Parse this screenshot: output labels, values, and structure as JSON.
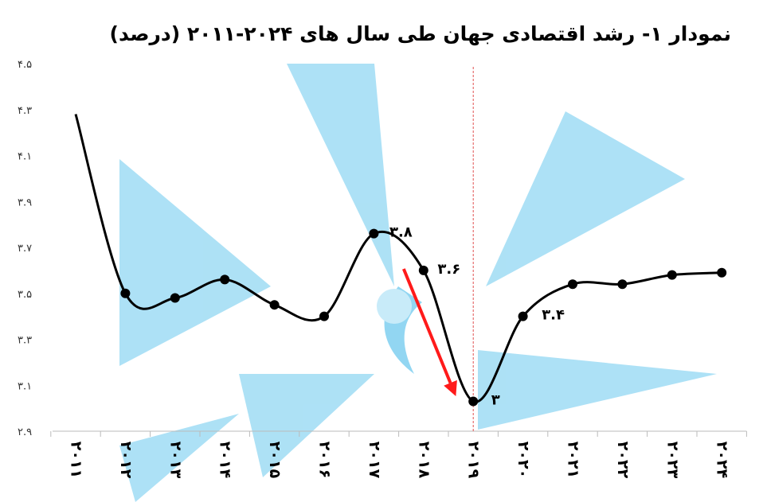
{
  "chart_data": {
    "type": "line",
    "title": "نمودار ۱- رشد اقتصادی جهان طی سال های ۲۰۲۴-۲۰۱۱ (درصد)",
    "categories": [
      "۲۰۱۱",
      "۲۰۱۲",
      "۲۰۱۳",
      "۲۰۱۴",
      "۲۰۱۵",
      "۲۰۱۶",
      "۲۰۱۷",
      "۲۰۱۸",
      "۲۰۱۹",
      "۲۰۲۰",
      "۲۰۲۱",
      "۲۰۲۲",
      "۲۰۲۳",
      "۲۰۲۴"
    ],
    "values": [
      4.28,
      3.5,
      3.48,
      3.56,
      3.45,
      3.4,
      3.76,
      3.6,
      3.03,
      3.4,
      3.54,
      3.54,
      3.58,
      3.59
    ],
    "ylim": [
      2.9,
      4.5
    ],
    "yticks": [
      2.9,
      3.1,
      3.3,
      3.5,
      3.7,
      3.9,
      4.1,
      4.3,
      4.5
    ],
    "ytick_labels": [
      "۲.۹",
      "۳.۱",
      "۳.۳",
      "۳.۵",
      "۳.۷",
      "۳.۹",
      "۴.۱",
      "۴.۳",
      "۴.۵"
    ],
    "data_labels": [
      {
        "index": 6,
        "text": "۳.۸"
      },
      {
        "index": 7,
        "text": "۳.۶"
      },
      {
        "index": 8,
        "text": "۳"
      },
      {
        "index": 9,
        "text": "۳.۴"
      }
    ],
    "marker_line_at": 8,
    "arrow": {
      "from": 6.6,
      "to": 7.65
    },
    "colors": {
      "line": "#000000",
      "marker_line": "#e05050",
      "arrow": "#ff1a1a",
      "watermark": "#7fd0f0"
    },
    "grid": false,
    "legend": "none"
  }
}
